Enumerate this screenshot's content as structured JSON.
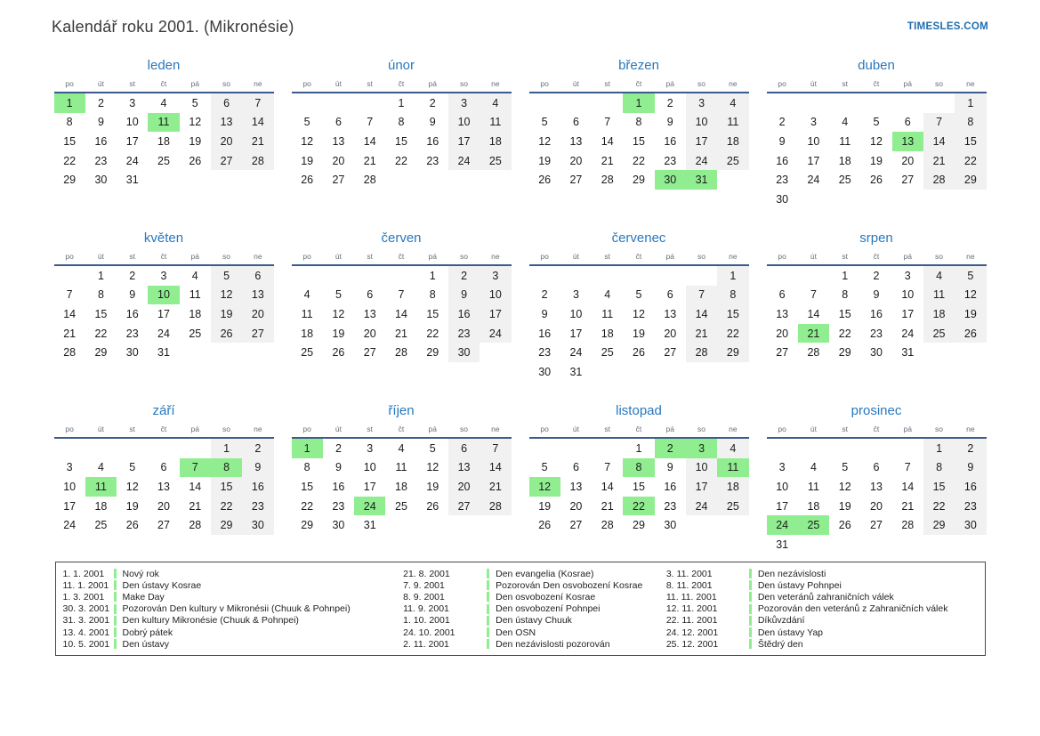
{
  "page": {
    "title": "Kalendář roku 2001. (Mikronésie)",
    "site": "TIMESLES.COM"
  },
  "colors": {
    "accent_blue": "#2878be",
    "header_line": "#3a5b8b",
    "highlight_green": "#90ee90",
    "weekend_bg": "#f1f1f1",
    "site_link_blue": "#1e6cb0"
  },
  "calendar": {
    "year": "2001",
    "day_headers": [
      "po",
      "út",
      "st",
      "čt",
      "pá",
      "so",
      "ne"
    ],
    "months": [
      {
        "name": "leden",
        "weeks": [
          [
            1,
            2,
            3,
            4,
            5,
            6,
            7
          ],
          [
            8,
            9,
            10,
            11,
            12,
            13,
            14
          ],
          [
            15,
            16,
            17,
            18,
            19,
            20,
            21
          ],
          [
            22,
            23,
            24,
            25,
            26,
            27,
            28
          ],
          [
            29,
            30,
            31,
            null,
            null,
            null,
            null
          ]
        ],
        "highlights": [
          1,
          11
        ]
      },
      {
        "name": "únor",
        "weeks": [
          [
            null,
            null,
            null,
            1,
            2,
            3,
            4
          ],
          [
            5,
            6,
            7,
            8,
            9,
            10,
            11
          ],
          [
            12,
            13,
            14,
            15,
            16,
            17,
            18
          ],
          [
            19,
            20,
            21,
            22,
            23,
            24,
            25
          ],
          [
            26,
            27,
            28,
            null,
            null,
            null,
            null
          ]
        ],
        "highlights": []
      },
      {
        "name": "březen",
        "weeks": [
          [
            null,
            null,
            null,
            1,
            2,
            3,
            4
          ],
          [
            5,
            6,
            7,
            8,
            9,
            10,
            11
          ],
          [
            12,
            13,
            14,
            15,
            16,
            17,
            18
          ],
          [
            19,
            20,
            21,
            22,
            23,
            24,
            25
          ],
          [
            26,
            27,
            28,
            29,
            30,
            31,
            null
          ]
        ],
        "highlights": [
          1,
          30,
          31
        ]
      },
      {
        "name": "duben",
        "weeks": [
          [
            null,
            null,
            null,
            null,
            null,
            null,
            1
          ],
          [
            2,
            3,
            4,
            5,
            6,
            7,
            8
          ],
          [
            9,
            10,
            11,
            12,
            13,
            14,
            15
          ],
          [
            16,
            17,
            18,
            19,
            20,
            21,
            22
          ],
          [
            23,
            24,
            25,
            26,
            27,
            28,
            29
          ],
          [
            30,
            null,
            null,
            null,
            null,
            null,
            null
          ]
        ],
        "highlights": [
          13
        ]
      },
      {
        "name": "květen",
        "weeks": [
          [
            null,
            1,
            2,
            3,
            4,
            5,
            6
          ],
          [
            7,
            8,
            9,
            10,
            11,
            12,
            13
          ],
          [
            14,
            15,
            16,
            17,
            18,
            19,
            20
          ],
          [
            21,
            22,
            23,
            24,
            25,
            26,
            27
          ],
          [
            28,
            29,
            30,
            31,
            null,
            null,
            null
          ]
        ],
        "highlights": [
          10
        ]
      },
      {
        "name": "červen",
        "weeks": [
          [
            null,
            null,
            null,
            null,
            1,
            2,
            3
          ],
          [
            4,
            5,
            6,
            7,
            8,
            9,
            10
          ],
          [
            11,
            12,
            13,
            14,
            15,
            16,
            17
          ],
          [
            18,
            19,
            20,
            21,
            22,
            23,
            24
          ],
          [
            25,
            26,
            27,
            28,
            29,
            30,
            null
          ]
        ],
        "highlights": []
      },
      {
        "name": "červenec",
        "weeks": [
          [
            null,
            null,
            null,
            null,
            null,
            null,
            1
          ],
          [
            2,
            3,
            4,
            5,
            6,
            7,
            8
          ],
          [
            9,
            10,
            11,
            12,
            13,
            14,
            15
          ],
          [
            16,
            17,
            18,
            19,
            20,
            21,
            22
          ],
          [
            23,
            24,
            25,
            26,
            27,
            28,
            29
          ],
          [
            30,
            31,
            null,
            null,
            null,
            null,
            null
          ]
        ],
        "highlights": []
      },
      {
        "name": "srpen",
        "weeks": [
          [
            null,
            null,
            1,
            2,
            3,
            4,
            5
          ],
          [
            6,
            7,
            8,
            9,
            10,
            11,
            12
          ],
          [
            13,
            14,
            15,
            16,
            17,
            18,
            19
          ],
          [
            20,
            21,
            22,
            23,
            24,
            25,
            26
          ],
          [
            27,
            28,
            29,
            30,
            31,
            null,
            null
          ]
        ],
        "highlights": [
          21
        ]
      },
      {
        "name": "září",
        "weeks": [
          [
            null,
            null,
            null,
            null,
            null,
            1,
            2
          ],
          [
            3,
            4,
            5,
            6,
            7,
            8,
            9
          ],
          [
            10,
            11,
            12,
            13,
            14,
            15,
            16
          ],
          [
            17,
            18,
            19,
            20,
            21,
            22,
            23
          ],
          [
            24,
            25,
            26,
            27,
            28,
            29,
            30
          ]
        ],
        "highlights": [
          7,
          8,
          11
        ]
      },
      {
        "name": "říjen",
        "weeks": [
          [
            1,
            2,
            3,
            4,
            5,
            6,
            7
          ],
          [
            8,
            9,
            10,
            11,
            12,
            13,
            14
          ],
          [
            15,
            16,
            17,
            18,
            19,
            20,
            21
          ],
          [
            22,
            23,
            24,
            25,
            26,
            27,
            28
          ],
          [
            29,
            30,
            31,
            null,
            null,
            null,
            null
          ]
        ],
        "highlights": [
          1,
          24
        ]
      },
      {
        "name": "listopad",
        "weeks": [
          [
            null,
            null,
            null,
            1,
            2,
            3,
            4
          ],
          [
            5,
            6,
            7,
            8,
            9,
            10,
            11
          ],
          [
            12,
            13,
            14,
            15,
            16,
            17,
            18
          ],
          [
            19,
            20,
            21,
            22,
            23,
            24,
            25
          ],
          [
            26,
            27,
            28,
            29,
            30,
            null,
            null
          ]
        ],
        "highlights": [
          2,
          3,
          8,
          11,
          12,
          22
        ]
      },
      {
        "name": "prosinec",
        "weeks": [
          [
            null,
            null,
            null,
            null,
            null,
            1,
            2
          ],
          [
            3,
            4,
            5,
            6,
            7,
            8,
            9
          ],
          [
            10,
            11,
            12,
            13,
            14,
            15,
            16
          ],
          [
            17,
            18,
            19,
            20,
            21,
            22,
            23
          ],
          [
            24,
            25,
            26,
            27,
            28,
            29,
            30
          ],
          [
            31,
            null,
            null,
            null,
            null,
            null,
            null
          ]
        ],
        "highlights": [
          24,
          25
        ]
      }
    ]
  },
  "holidays": {
    "columns": [
      [
        {
          "date": "1. 1. 2001",
          "name": "Nový rok"
        },
        {
          "date": "11. 1. 2001",
          "name": "Den ústavy Kosrae"
        },
        {
          "date": "1. 3. 2001",
          "name": "Make Day"
        },
        {
          "date": "30. 3. 2001",
          "name": "Pozorován Den kultury v Mikronésii (Chuuk & Pohnpei)"
        },
        {
          "date": "31. 3. 2001",
          "name": "Den kultury Mikronésie (Chuuk & Pohnpei)"
        },
        {
          "date": "13. 4. 2001",
          "name": "Dobrý pátek"
        },
        {
          "date": "10. 5. 2001",
          "name": "Den ústavy"
        }
      ],
      [
        {
          "date": "21. 8. 2001",
          "name": "Den evangelia (Kosrae)"
        },
        {
          "date": "7. 9. 2001",
          "name": "Pozorován Den osvobození Kosrae"
        },
        {
          "date": "8. 9. 2001",
          "name": "Den osvobození Kosrae"
        },
        {
          "date": "11. 9. 2001",
          "name": "Den osvobození Pohnpei"
        },
        {
          "date": "1. 10. 2001",
          "name": "Den ústavy Chuuk"
        },
        {
          "date": "24. 10. 2001",
          "name": "Den OSN"
        },
        {
          "date": "2. 11. 2001",
          "name": "Den nezávislosti pozorován"
        }
      ],
      [
        {
          "date": "3. 11. 2001",
          "name": "Den nezávislosti"
        },
        {
          "date": "8. 11. 2001",
          "name": "Den ústavy Pohnpei"
        },
        {
          "date": "11. 11. 2001",
          "name": "Den veteránů zahraničních válek"
        },
        {
          "date": "12. 11. 2001",
          "name": "Pozorován den veteránů z Zahraničních válek"
        },
        {
          "date": "22. 11. 2001",
          "name": "Díkůvzdání"
        },
        {
          "date": "24. 12. 2001",
          "name": "Den ústavy Yap"
        },
        {
          "date": "25. 12. 2001",
          "name": "Štědrý den"
        }
      ]
    ]
  }
}
